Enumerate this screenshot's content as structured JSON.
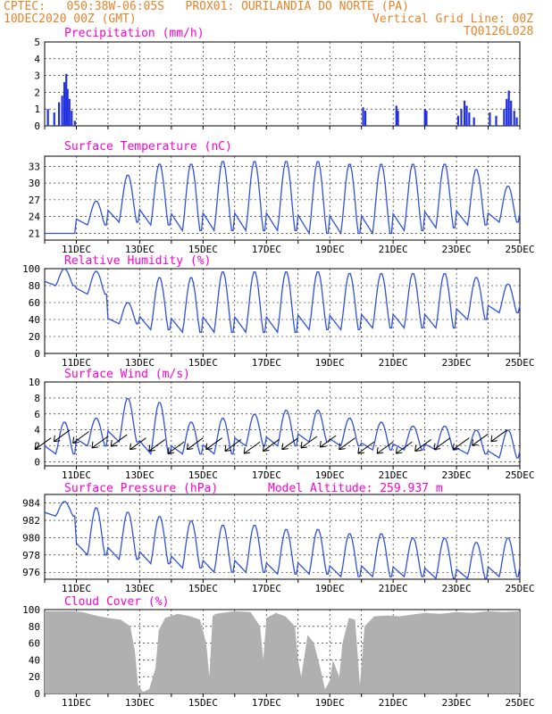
{
  "header": {
    "left1": "CPTEC:   050:38W-06:05S   PROX01: OURILANDIA DO NORTE (PA)",
    "left2": "10DEC2020 00Z (GMT)",
    "right2": "Vertical Grid Line: 00Z",
    "right3": "TQ0126L028"
  },
  "colors": {
    "header": "#e8832a",
    "title": "#ff00cc",
    "line": "#3050e0",
    "bar": "#2030e0",
    "cloud": "#b0b0b0"
  },
  "date_ticks": [
    "11DEC",
    "13DEC",
    "15DEC",
    "17DEC",
    "19DEC",
    "21DEC",
    "23DEC",
    "25DEC"
  ],
  "chart_data": [
    {
      "type": "bar",
      "title": "Precipitation (mm/h)",
      "ylim": [
        0,
        5
      ],
      "yticks": [
        0,
        1,
        2,
        3,
        4,
        5
      ],
      "x_start": "10DEC2020 00Z",
      "x_end": "25DEC2020 00Z",
      "events": [
        {
          "day": 10.1,
          "value": 1.0
        },
        {
          "day": 10.3,
          "value": 0.8
        },
        {
          "day": 10.45,
          "value": 1.4
        },
        {
          "day": 10.55,
          "value": 1.8
        },
        {
          "day": 10.62,
          "value": 2.6
        },
        {
          "day": 10.68,
          "value": 3.1
        },
        {
          "day": 10.72,
          "value": 2.2
        },
        {
          "day": 10.78,
          "value": 1.6
        },
        {
          "day": 10.85,
          "value": 0.9
        },
        {
          "day": 10.95,
          "value": 0.3
        },
        {
          "day": 20.05,
          "value": 1.1
        },
        {
          "day": 20.12,
          "value": 0.9
        },
        {
          "day": 21.1,
          "value": 1.2
        },
        {
          "day": 21.15,
          "value": 0.9
        },
        {
          "day": 22.0,
          "value": 1.0
        },
        {
          "day": 22.05,
          "value": 0.9
        },
        {
          "day": 23.05,
          "value": 0.6
        },
        {
          "day": 23.15,
          "value": 1.0
        },
        {
          "day": 23.25,
          "value": 1.5
        },
        {
          "day": 23.32,
          "value": 1.2
        },
        {
          "day": 23.4,
          "value": 0.8
        },
        {
          "day": 23.55,
          "value": 0.5
        },
        {
          "day": 24.05,
          "value": 0.8
        },
        {
          "day": 24.25,
          "value": 0.6
        },
        {
          "day": 24.5,
          "value": 1.0
        },
        {
          "day": 24.58,
          "value": 1.6
        },
        {
          "day": 24.65,
          "value": 2.1
        },
        {
          "day": 24.72,
          "value": 1.5
        },
        {
          "day": 24.82,
          "value": 0.9
        },
        {
          "day": 24.9,
          "value": 0.5
        }
      ]
    },
    {
      "type": "line",
      "title": "Surface Temperature (nC)",
      "ylim": [
        19.8,
        34.8
      ],
      "yticks": [
        21,
        24,
        27,
        30,
        33
      ],
      "days_min_max": [
        [
          10,
          21.0,
          21.0
        ],
        [
          11,
          22.5,
          26.8
        ],
        [
          12,
          23.0,
          31.5
        ],
        [
          13,
          22.5,
          33.5
        ],
        [
          14,
          21.5,
          33.5
        ],
        [
          15,
          21.5,
          34.0
        ],
        [
          16,
          21.5,
          34.0
        ],
        [
          17,
          21.5,
          34.0
        ],
        [
          18,
          21.0,
          34.0
        ],
        [
          19,
          21.0,
          33.5
        ],
        [
          20,
          21.0,
          33.5
        ],
        [
          21,
          21.5,
          33.5
        ],
        [
          22,
          22.0,
          33.5
        ],
        [
          23,
          22.5,
          32.5
        ],
        [
          24,
          23.0,
          29.5
        ]
      ]
    },
    {
      "type": "line",
      "title": "Relative Humidity (%)",
      "ylim": [
        0,
        100
      ],
      "yticks": [
        0,
        20,
        40,
        60,
        80,
        100
      ],
      "days_min_max": [
        [
          10,
          80,
          100
        ],
        [
          11,
          70,
          97
        ],
        [
          12,
          35,
          60
        ],
        [
          13,
          28,
          90
        ],
        [
          14,
          25,
          90
        ],
        [
          15,
          25,
          97
        ],
        [
          16,
          25,
          97
        ],
        [
          17,
          25,
          97
        ],
        [
          18,
          28,
          97
        ],
        [
          19,
          28,
          95
        ],
        [
          20,
          30,
          95
        ],
        [
          21,
          30,
          95
        ],
        [
          22,
          30,
          95
        ],
        [
          23,
          40,
          90
        ],
        [
          24,
          48,
          82
        ]
      ]
    },
    {
      "type": "line",
      "title": "Surface Wind (m/s)",
      "ylim": [
        -0.5,
        10
      ],
      "yticks": [
        0,
        2,
        4,
        6,
        8,
        10
      ],
      "days_min_max": [
        [
          10,
          1.0,
          5.0
        ],
        [
          11,
          2.0,
          5.5
        ],
        [
          12,
          2.5,
          8.0
        ],
        [
          13,
          1.0,
          7.5
        ],
        [
          14,
          1.0,
          5.0
        ],
        [
          15,
          1.0,
          5.5
        ],
        [
          16,
          2.0,
          6.0
        ],
        [
          17,
          2.0,
          6.5
        ],
        [
          18,
          2.5,
          6.5
        ],
        [
          19,
          2.0,
          5.5
        ],
        [
          20,
          1.5,
          5.0
        ],
        [
          21,
          1.5,
          4.5
        ],
        [
          22,
          1.5,
          4.5
        ],
        [
          23,
          1.0,
          4.0
        ],
        [
          24,
          0.5,
          4.0
        ]
      ],
      "arrows": [
        {
          "day": 10.2,
          "y": 3.0
        },
        {
          "day": 10.8,
          "y": 4.0
        },
        {
          "day": 11.4,
          "y": 3.8
        },
        {
          "day": 12.0,
          "y": 3.2
        },
        {
          "day": 12.6,
          "y": 3.4
        },
        {
          "day": 13.2,
          "y": 3.0
        },
        {
          "day": 13.8,
          "y": 2.8
        },
        {
          "day": 14.4,
          "y": 2.5
        },
        {
          "day": 15.0,
          "y": 3.0
        },
        {
          "day": 15.6,
          "y": 3.0
        },
        {
          "day": 16.2,
          "y": 2.8
        },
        {
          "day": 16.8,
          "y": 2.5
        },
        {
          "day": 17.4,
          "y": 2.8
        },
        {
          "day": 18.0,
          "y": 3.0
        },
        {
          "day": 18.6,
          "y": 3.2
        },
        {
          "day": 19.2,
          "y": 3.3
        },
        {
          "day": 19.8,
          "y": 3.0
        },
        {
          "day": 20.4,
          "y": 2.5
        },
        {
          "day": 21.0,
          "y": 2.5
        },
        {
          "day": 21.6,
          "y": 2.5
        },
        {
          "day": 22.2,
          "y": 2.8
        },
        {
          "day": 22.8,
          "y": 3.0
        },
        {
          "day": 23.4,
          "y": 3.0
        },
        {
          "day": 24.0,
          "y": 3.5
        },
        {
          "day": 24.6,
          "y": 4.0
        }
      ]
    },
    {
      "type": "line",
      "title": "Surface Pressure (hPa)",
      "annotation": "Model Altitude: 259.937 m",
      "ylim": [
        975.2,
        985.0
      ],
      "yticks": [
        976,
        978,
        980,
        982,
        984
      ],
      "days_min_max": [
        [
          10,
          982.5,
          984.2
        ],
        [
          11,
          978.0,
          983.5
        ],
        [
          12,
          977.5,
          983.0
        ],
        [
          13,
          977.0,
          982.5
        ],
        [
          14,
          976.5,
          982.0
        ],
        [
          15,
          976.0,
          981.5
        ],
        [
          16,
          976.0,
          981.5
        ],
        [
          17,
          975.8,
          981.0
        ],
        [
          18,
          975.8,
          981.0
        ],
        [
          19,
          975.5,
          980.5
        ],
        [
          20,
          975.5,
          980.5
        ],
        [
          21,
          975.5,
          980.0
        ],
        [
          22,
          975.3,
          980.0
        ],
        [
          23,
          975.3,
          979.5
        ],
        [
          24,
          975.5,
          980.0
        ]
      ]
    },
    {
      "type": "area",
      "title": "Cloud Cover (%)",
      "ylim": [
        0,
        100
      ],
      "yticks": [
        0,
        20,
        40,
        60,
        80,
        100
      ],
      "points": [
        [
          10.0,
          98
        ],
        [
          10.9,
          98
        ],
        [
          11.2,
          97
        ],
        [
          11.6,
          93
        ],
        [
          12.0,
          90
        ],
        [
          12.4,
          88
        ],
        [
          12.7,
          80
        ],
        [
          12.85,
          50
        ],
        [
          12.95,
          10
        ],
        [
          13.1,
          2
        ],
        [
          13.3,
          5
        ],
        [
          13.5,
          30
        ],
        [
          13.6,
          75
        ],
        [
          13.8,
          90
        ],
        [
          14.2,
          95
        ],
        [
          14.6,
          92
        ],
        [
          14.9,
          88
        ],
        [
          15.1,
          60
        ],
        [
          15.2,
          20
        ],
        [
          15.3,
          92
        ],
        [
          15.4,
          95
        ],
        [
          16.0,
          98
        ],
        [
          16.5,
          97
        ],
        [
          16.8,
          80
        ],
        [
          16.9,
          40
        ],
        [
          17.0,
          90
        ],
        [
          17.3,
          96
        ],
        [
          17.6,
          92
        ],
        [
          17.9,
          80
        ],
        [
          18.0,
          40
        ],
        [
          18.1,
          20
        ],
        [
          18.3,
          70
        ],
        [
          18.5,
          60
        ],
        [
          18.7,
          30
        ],
        [
          18.85,
          5
        ],
        [
          19.0,
          15
        ],
        [
          19.1,
          40
        ],
        [
          19.3,
          20
        ],
        [
          19.4,
          60
        ],
        [
          19.6,
          90
        ],
        [
          19.8,
          88
        ],
        [
          19.95,
          10
        ],
        [
          20.1,
          80
        ],
        [
          20.4,
          92
        ],
        [
          20.8,
          93
        ],
        [
          21.2,
          92
        ],
        [
          21.6,
          94
        ],
        [
          22.0,
          96
        ],
        [
          22.5,
          95
        ],
        [
          23.0,
          97
        ],
        [
          23.5,
          96
        ],
        [
          24.0,
          98
        ],
        [
          24.5,
          97
        ],
        [
          25.0,
          98
        ]
      ]
    }
  ]
}
